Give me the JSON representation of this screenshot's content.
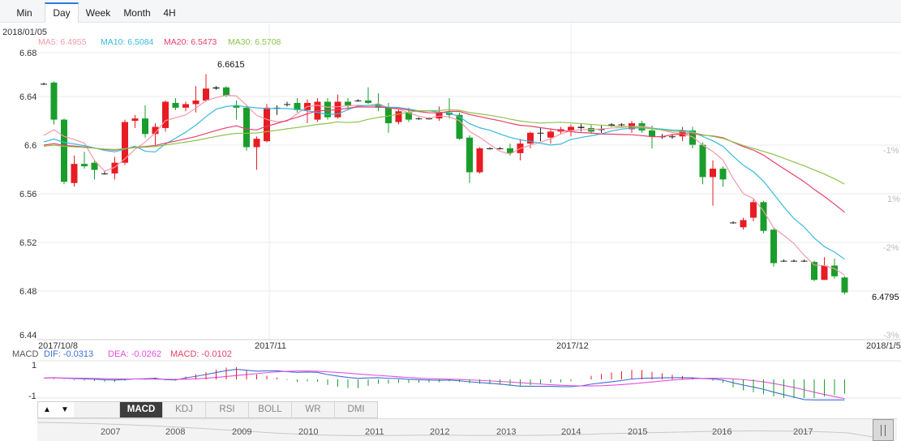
{
  "tabs": [
    {
      "label": "Min",
      "active": false
    },
    {
      "label": "Day",
      "active": true
    },
    {
      "label": "Week",
      "active": false
    },
    {
      "label": "Month",
      "active": false
    },
    {
      "label": "4H",
      "active": false
    }
  ],
  "header": {
    "date": "2018/01/05",
    "ma5": "MA5: 6.4955",
    "ma10": "MA10: 6.5084",
    "ma20": "MA20: 6.5473",
    "ma30": "MA30: 6.5708"
  },
  "colors": {
    "up": "#e81c23",
    "down": "#1a9e2b",
    "ma5": "#f29aaa",
    "ma10": "#36b9dd",
    "ma20": "#e8406a",
    "ma30": "#8cc34a",
    "dif": "#3d6fd6",
    "dea": "#e64fe0",
    "macd": "#e8406a"
  },
  "y_axis": [
    "6.68",
    "6.64",
    "6.6",
    "6.56",
    "6.52",
    "6.48",
    "6.44"
  ],
  "pct_axis": [
    "-1%",
    "1%",
    "-2%",
    "-3%"
  ],
  "annotations": {
    "high": "6.6615",
    "last": "6.4795"
  },
  "x_axis": [
    "2017/10/8",
    "2017/11",
    "2017/12",
    "2018/1/5"
  ],
  "macd_header": {
    "label": "MACD",
    "dif": "DIF: -0.0313",
    "dea": "DEA: -0.0262",
    "macd": "MACD: -0.0102"
  },
  "macd_axis": [
    "1",
    "-1"
  ],
  "indicators": {
    "up_arrow": "▲",
    "down_arrow": "▼",
    "tabs": [
      "MACD",
      "KDJ",
      "RSI",
      "BOLL",
      "WR",
      "DMI"
    ],
    "active": "MACD"
  },
  "timeline_years": [
    "2007",
    "2008",
    "2009",
    "2010",
    "2011",
    "2012",
    "2013",
    "2014",
    "2015",
    "2016",
    "2017"
  ],
  "chart_data": {
    "type": "candlestick",
    "ylim": [
      6.44,
      6.68
    ],
    "candles": [
      [
        6.654,
        6.654,
        6.655,
        6.653
      ],
      [
        6.655,
        6.624,
        6.656,
        6.62
      ],
      [
        6.624,
        6.572,
        6.625,
        6.57
      ],
      [
        6.571,
        6.587,
        6.594,
        6.568
      ],
      [
        6.587,
        6.585,
        6.597,
        6.583
      ],
      [
        6.588,
        6.582,
        6.59,
        6.574
      ],
      [
        6.579,
        6.579,
        6.581,
        6.578
      ],
      [
        6.579,
        6.588,
        6.593,
        6.574
      ],
      [
        6.588,
        6.622,
        6.624,
        6.586
      ],
      [
        6.623,
        6.625,
        6.628,
        6.617
      ],
      [
        6.625,
        6.612,
        6.636,
        6.609
      ],
      [
        6.612,
        6.618,
        6.621,
        6.603
      ],
      [
        6.617,
        6.639,
        6.64,
        6.614
      ],
      [
        6.638,
        6.634,
        6.642,
        6.632
      ],
      [
        6.634,
        6.637,
        6.639,
        6.631
      ],
      [
        6.637,
        6.64,
        6.652,
        6.63
      ],
      [
        6.64,
        6.65,
        6.662,
        6.639
      ],
      [
        6.65,
        6.651,
        6.652,
        6.649
      ],
      [
        6.651,
        6.644,
        6.652,
        6.643
      ],
      [
        6.636,
        6.634,
        6.64,
        6.624
      ],
      [
        6.634,
        6.601,
        6.635,
        6.598
      ],
      [
        6.601,
        6.608,
        6.61,
        6.582
      ],
      [
        6.606,
        6.634,
        6.637,
        6.605
      ],
      [
        6.634,
        6.634,
        6.636,
        6.628
      ],
      [
        6.637,
        6.637,
        6.639,
        6.635
      ],
      [
        6.638,
        6.632,
        6.642,
        6.63
      ],
      [
        6.632,
        6.638,
        6.641,
        6.621
      ],
      [
        6.624,
        6.639,
        6.642,
        6.622
      ],
      [
        6.639,
        6.626,
        6.642,
        6.624
      ],
      [
        6.626,
        6.639,
        6.645,
        6.625
      ],
      [
        6.639,
        6.636,
        6.642,
        6.632
      ],
      [
        6.64,
        6.64,
        6.641,
        6.639
      ],
      [
        6.64,
        6.638,
        6.651,
        6.637
      ],
      [
        6.637,
        6.634,
        6.646,
        6.631
      ],
      [
        6.634,
        6.621,
        6.638,
        6.613
      ],
      [
        6.622,
        6.631,
        6.633,
        6.62
      ],
      [
        6.63,
        6.624,
        6.634,
        6.622
      ],
      [
        6.625,
        6.625,
        6.626,
        6.624
      ],
      [
        6.625,
        6.625,
        6.626,
        6.624
      ],
      [
        6.625,
        6.63,
        6.635,
        6.623
      ],
      [
        6.63,
        6.628,
        6.642,
        6.625
      ],
      [
        6.628,
        6.608,
        6.63,
        6.607
      ],
      [
        6.609,
        6.58,
        6.611,
        6.571
      ],
      [
        6.58,
        6.6,
        6.601,
        6.579
      ],
      [
        6.6,
        6.6,
        6.601,
        6.599
      ],
      [
        6.6,
        6.6,
        6.601,
        6.599
      ],
      [
        6.6,
        6.596,
        6.604,
        6.594
      ],
      [
        6.596,
        6.604,
        6.608,
        6.59
      ],
      [
        6.604,
        6.613,
        6.614,
        6.6
      ],
      [
        6.613,
        6.613,
        6.617,
        6.606
      ],
      [
        6.609,
        6.614,
        6.616,
        6.604
      ],
      [
        6.614,
        6.616,
        6.618,
        6.612
      ],
      [
        6.615,
        6.618,
        6.62,
        6.61
      ],
      [
        6.618,
        6.617,
        6.621,
        6.614
      ],
      [
        6.617,
        6.614,
        6.62,
        6.612
      ],
      [
        6.616,
        6.616,
        6.619,
        6.613
      ],
      [
        6.619,
        6.62,
        6.621,
        6.618
      ],
      [
        6.62,
        6.62,
        6.621,
        6.618
      ],
      [
        6.616,
        6.621,
        6.623,
        6.613
      ],
      [
        6.621,
        6.615,
        6.623,
        6.613
      ],
      [
        6.615,
        6.61,
        6.619,
        6.6
      ],
      [
        6.61,
        6.61,
        6.612,
        6.608
      ],
      [
        6.61,
        6.61,
        6.612,
        6.608
      ],
      [
        6.61,
        6.615,
        6.618,
        6.606
      ],
      [
        6.615,
        6.603,
        6.618,
        6.6
      ],
      [
        6.603,
        6.576,
        6.605,
        6.57
      ],
      [
        6.576,
        6.583,
        6.59,
        6.552
      ],
      [
        6.583,
        6.574,
        6.585,
        6.568
      ],
      [
        6.538,
        6.538,
        6.539,
        6.537
      ],
      [
        6.534,
        6.54,
        6.542,
        6.532
      ],
      [
        6.542,
        6.555,
        6.557,
        6.539
      ],
      [
        6.555,
        6.531,
        6.556,
        6.529
      ],
      [
        6.532,
        6.504,
        6.533,
        6.501
      ],
      [
        6.506,
        6.506,
        6.507,
        6.505
      ],
      [
        6.506,
        6.506,
        6.507,
        6.505
      ],
      [
        6.506,
        6.506,
        6.507,
        6.505
      ],
      [
        6.505,
        6.49,
        6.506,
        6.489
      ],
      [
        6.49,
        6.502,
        6.509,
        6.49
      ],
      [
        6.502,
        6.493,
        6.508,
        6.491
      ],
      [
        6.492,
        6.4795,
        6.493,
        6.478
      ]
    ]
  }
}
